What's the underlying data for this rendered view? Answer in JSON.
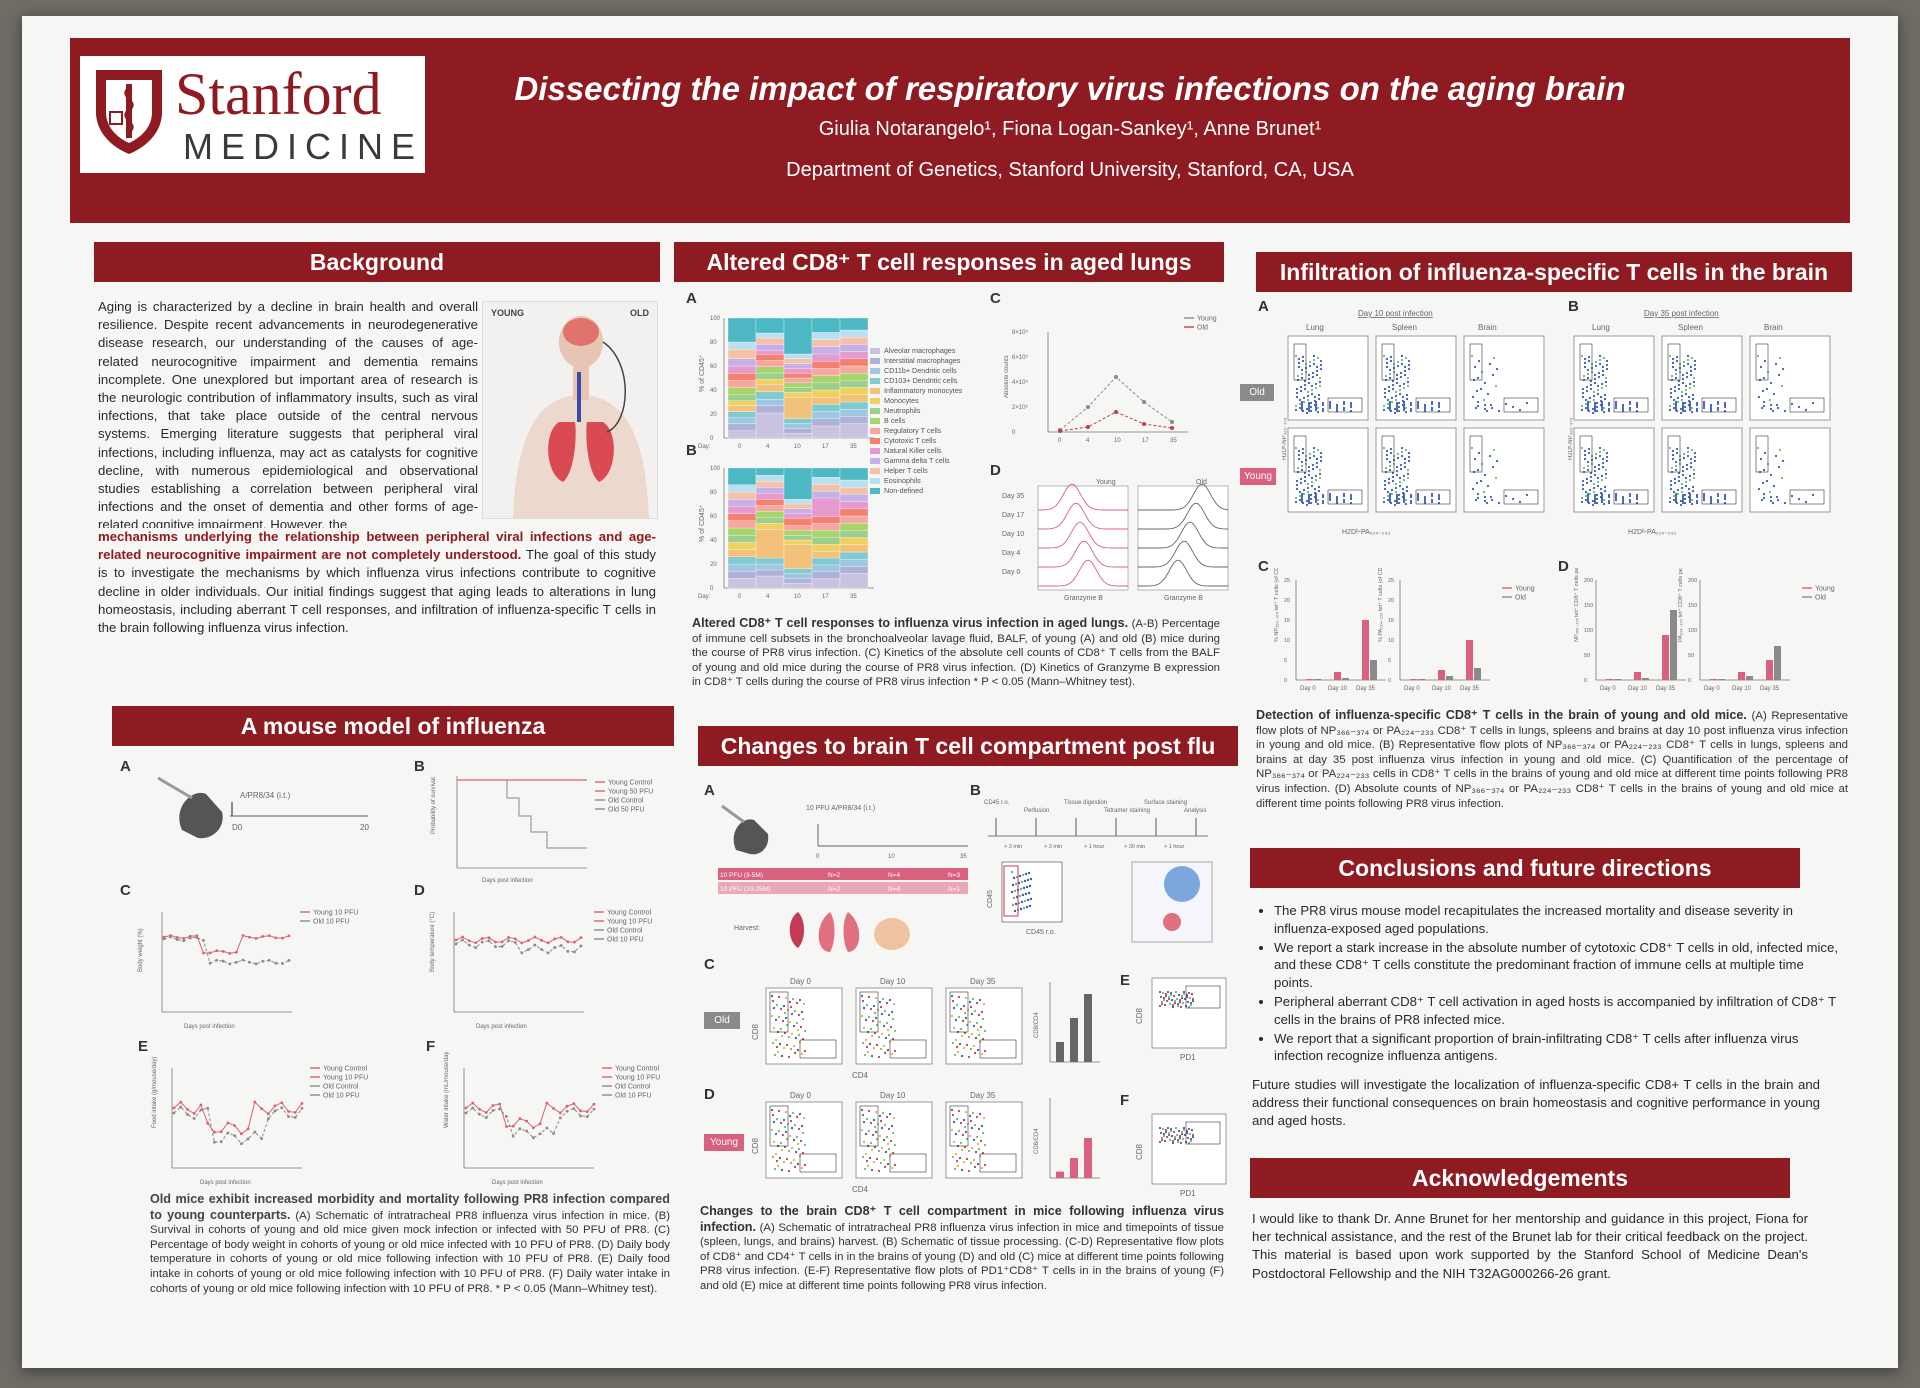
{
  "header": {
    "logo_main": "Stanford",
    "logo_sub": "MEDICINE",
    "title": "Dissecting the impact of respiratory virus infections on the aging brain",
    "authors": "Giulia Notarangelo¹, Fiona Logan-Sankey¹, Anne Brunet¹",
    "affiliation": "Department of Genetics, Stanford University, Stanford, CA, USA"
  },
  "background": {
    "heading": "Background",
    "illustration": {
      "left": "YOUNG",
      "right": "OLD"
    },
    "text_1": "Aging is characterized by a decline in brain health and overall resilience. Despite recent advancements in neurodegenerative disease research, our understanding of the causes of age-related neurocognitive impairment and dementia remains incomplete. One unexplored but important area of research is the neurologic contribution of inflammatory insults, such as viral infections, that take place outside of the central nervous systems. Emerging literature suggests that peripheral viral infections, including influenza, may act as catalysts for cognitive decline, with numerous epidemiological and observational studies establishing a correlation between peripheral viral infections and the onset of dementia and other forms of age-related cognitive impairment. However, the ",
    "text_highlight": "mechanisms underlying the relationship between peripheral viral infections and age-related neurocognitive impairment are not completely understood.",
    "text_2": " The goal of this study is to investigate the mechanisms by which influenza virus infections contribute to cognitive decline in older individuals. Our initial findings suggest that aging leads to alterations in lung homeostasis, including aberrant T cell responses, and infiltration of influenza-specific T cells in the brain following influenza virus infection."
  },
  "mouse_model": {
    "heading": "A mouse model of influenza",
    "panels": [
      "A",
      "B",
      "C",
      "D",
      "E",
      "F"
    ],
    "a_label": "A/PR8/34 (i.t.)",
    "a_ticks": [
      "D0",
      "20"
    ],
    "b_legend": [
      "Young Control",
      "Young 50 PFU",
      "Old Control",
      "Old 50 PFU"
    ],
    "b_ylabel": "Probability of survival",
    "c_legend": [
      "Young 10 PFU",
      "Old 10 PFU"
    ],
    "c_ylabel": "Body weight (%)",
    "d_legend": [
      "Young Control",
      "Young 10 PFU",
      "Old Control",
      "Old 10 PFU"
    ],
    "d_ylabel": "Body temperature (°C)",
    "e_legend": [
      "Young Control",
      "Young 10 PFU",
      "Old Control",
      "Old 10 PFU"
    ],
    "e_ylabel": "Food intake (g/mouse/day)",
    "f_legend": [
      "Young Control",
      "Young 10 PFU",
      "Old Control",
      "Old 10 PFU"
    ],
    "f_ylabel": "Water intake (mL/mouse/day)",
    "xlabel": "Days post infection",
    "caption_bold": "Old mice exhibit increased morbidity and mortality following PR8 infection compared to young counterparts.",
    "caption": " (A) Schematic of intratracheal PR8 influenza virus infection in mice. (B) Survival in cohorts of young and old mice given mock infection or infected with 50 PFU of PR8. (C) Percentage of body weight in cohorts of young or old mice infected with 10 PFU of PR8. (D) Daily body temperature in cohorts of young or old mice following infection with 10 PFU of PR8. (E) Daily food intake in cohorts of young or old mice following infection with 10 PFU of PR8. (F) Daily water intake in cohorts of young or old mice following infection with 10 PFU of PR8. * P < 0.05 (Mann–Whitney test)."
  },
  "lungs": {
    "heading": "Altered CD8⁺ T cell responses in aged lungs",
    "panels": [
      "A",
      "B",
      "C",
      "D"
    ],
    "ab_ylabel": "% of CD45⁺",
    "ab_days": [
      "Day:",
      "0",
      "4",
      "10",
      "17",
      "35"
    ],
    "legend": [
      "Alveolar macrophages",
      "Interstitial macrophages",
      "CD11b+ Dendritic cells",
      "CD103+ Dendritic cells",
      "Inflammatory monocytes",
      "Monocytes",
      "Neutrophils",
      "B cells",
      "Regulatory T cells",
      "Cytotoxic T cells",
      "Natural Killer cells",
      "Gamma delta T cells",
      "Helper T cells",
      "Eosinophils",
      "Non-defined"
    ],
    "c_legend": [
      "Young",
      "Old"
    ],
    "c_ylabel": "Absolute counts",
    "c_xlabel": "Days post infection",
    "c_yticks": [
      "8×10⁵",
      "6×10⁵",
      "4×10⁵",
      "2×10⁵",
      "0"
    ],
    "c_xticks": [
      "0",
      "4",
      "10",
      "17",
      "35"
    ],
    "d_titles": [
      "Young",
      "Old"
    ],
    "d_rows": [
      "Day 35",
      "Day 17",
      "Day 10",
      "Day 4",
      "Day 0"
    ],
    "d_xlabel": "Granzyme B",
    "caption_bold": "Altered CD8⁺ T cell responses to influenza virus infection in aged lungs.",
    "caption": " (A-B) Percentage of immune cell subsets in the bronchoalveolar lavage fluid, BALF, of young (A) and old (B) mice during the course of PR8 virus infection. (C) Kinetics of the absolute cell counts of CD8⁺ T cells from the BALF of young and old mice during the course of PR8 virus infection. (D) Kinetics of Granzyme B expression in CD8⁺ T cells during the course of PR8 virus infection * P < 0.05 (Mann–Whitney test)."
  },
  "brain_tcell": {
    "heading": "Changes to brain T cell compartment post flu",
    "panels": [
      "A",
      "B",
      "C",
      "D",
      "E",
      "F"
    ],
    "a_label": "10 PFU A/PR8/34 (i.t.)",
    "a_ticks": [
      "0",
      "10",
      "35"
    ],
    "a_rows": [
      {
        "label": "10 PFU (3-5M)",
        "n": [
          "N=2",
          "N=4",
          "N=3"
        ]
      },
      {
        "label": "10 PFU (20-25M)",
        "n": [
          "N=2",
          "N=4",
          "N=1"
        ]
      }
    ],
    "harvest": "Harvest:",
    "b_steps": [
      "CD45 r.o.",
      "Perfusion",
      "Tissue digestion",
      "Tetramer staining",
      "Surface staining",
      "Analysis"
    ],
    "b_times": [
      "+ 3 min",
      "+ 3 min",
      "+ 1 hour",
      "+ 30 min",
      "+ 1 hour"
    ],
    "b_xlabel": "CD45 r.o.",
    "b_ylabel": "CD45",
    "days": [
      "Day 0",
      "Day 10",
      "Day 35"
    ],
    "old_tag": "Old",
    "young_tag": "Young",
    "axis_x": "CD4",
    "axis_y": "CD8",
    "ratio_label": "CD8/CD4",
    "ef_xlabel": "PD1",
    "ef_ylabel": "CD8",
    "caption_bold": "Changes to the brain CD8⁺ T cell compartment in mice following influenza virus infection.",
    "caption": " (A) Schematic of intratracheal PR8 influenza virus infection in mice and timepoints of tissue (spleen, lungs, and brains) harvest. (B) Schematic of tissue processing. (C-D) Representative flow plots of CD8⁺ and CD4⁺ T cells in in the brains of young (D) and old (C) mice at different time points following PR8 virus infection. (E-F) Representative flow plots of PD1⁺CD8⁺ T cells in in the brains of young (F) and old (E) mice at different time points following PR8 virus infection."
  },
  "infiltration": {
    "heading": "Infiltration of influenza-specific T cells in the brain",
    "panels": [
      "A",
      "B",
      "C",
      "D"
    ],
    "a_title": "Day 10 post infection",
    "b_title": "Day 35 post infection",
    "tissues": [
      "Lung",
      "Spleen",
      "Brain"
    ],
    "old_tag": "Old",
    "young_tag": "Young",
    "flow_xlabel": "H2Dᵇ-PA₂₂₄₋₂₃₃",
    "flow_ylabel": "H2Dᵇ-NP₃₆₆₋₃₇₄",
    "cd_legend": [
      "Young",
      "Old"
    ],
    "cd_xticks": [
      "Day 0",
      "Day 10",
      "Day 35"
    ],
    "c_ylabel_1": "% NP₃₆₆₋₃₇₄ tet⁺ T cells (of CD8⁺)",
    "c_ylabel_2": "% PA₂₂₄₋₂₃₃ tet⁺ T cells (of CD8⁺)",
    "d_ylabel_1": "NP₃₆₆₋₃₇₄ tet⁺ CD8⁺ T cells per brain",
    "d_ylabel_2": "PA₂₂₄₋₂₃₃ tet⁺ CD8⁺ T cells per brain",
    "caption_bold": "Detection of influenza-specific CD8⁺ T cells in the brain of young and old mice.",
    "caption": " (A) Representative flow plots of NP₃₆₆₋₃₇₄ or PA₂₂₄₋₂₃₃ CD8⁺ T cells in lungs, spleens and brains at day 10 post influenza virus infection in young and old mice. (B) Representative flow plots of NP₃₆₆₋₃₇₄ or PA₂₂₄₋₂₃₃ CD8⁺ T cells in lungs, spleens and brains at day 35 post influenza virus infection in young and old mice. (C) Quantification of the percentage of NP₃₆₆₋₃₇₄ or PA₂₂₄₋₂₃₃ cells in CD8⁺ T cells in the brains of young and old mice at different time points following PR8 virus infection. (D) Absolute counts of NP₃₆₆₋₃₇₄ or PA₂₂₄₋₂₃₃ CD8⁺ T cells in the brains of young and old mice at different time points following PR8 virus infection."
  },
  "conclusions": {
    "heading": "Conclusions and future directions",
    "items": [
      "The PR8 virus mouse model recapitulates the increased mortality and disease severity in influenza-exposed aged populations.",
      "We report a stark increase in the absolute number of cytotoxic CD8⁺ T cells in old, infected mice, and these CD8⁺ T cells constitute the predominant fraction of immune cells at multiple time points.",
      "Peripheral aberrant CD8⁺ T cell activation in aged hosts is accompanied by infiltration of CD8⁺ T cells in the brains of PR8 infected mice.",
      "We report that a significant proportion of brain-infiltrating CD8⁺ T cells after influenza virus infection recognize influenza antigens."
    ],
    "future": "Future studies will investigate the localization of influenza-specific CD8+ T cells in the brain and address their functional consequences on brain homeostasis and cognitive performance in young and aged hosts."
  },
  "acknowledgements": {
    "heading": "Acknowledgements",
    "text": "I would like to thank Dr. Anne Brunet for her mentorship and guidance in this project, Fiona for her technical assistance, and the rest of the Brunet lab for their critical feedback on the project. This material is based upon work supported by the Stanford School of Medicine Dean's Postdoctoral Fellowship and the NIH T32AG000266-26 grant."
  },
  "colors": {
    "brand": "#8e1b22",
    "young": "#d9607e",
    "old": "#8a8a8a",
    "poster_bg": "#f6f6f4"
  }
}
